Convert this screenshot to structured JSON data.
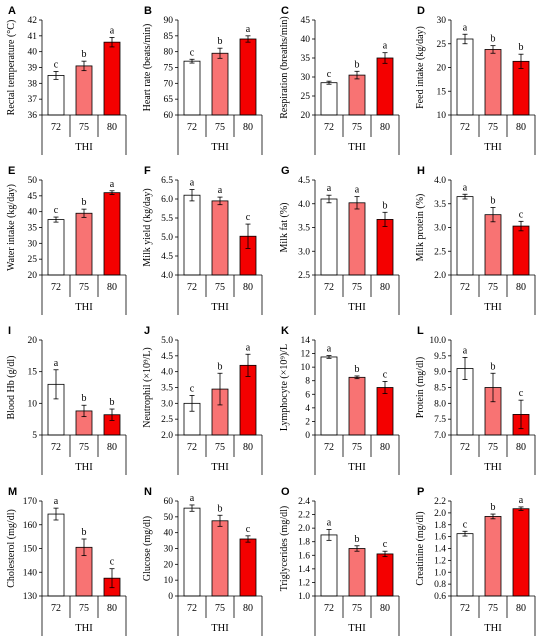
{
  "chart_data": [
    {
      "panel": "A",
      "type": "bar",
      "ylabel": "Rectal temperature (°C)",
      "xlabel": "THI",
      "categories": [
        "72",
        "75",
        "80"
      ],
      "values": [
        38.5,
        39.1,
        40.6
      ],
      "errors": [
        0.25,
        0.3,
        0.3
      ],
      "sig": [
        "c",
        "b",
        "a"
      ],
      "ylim": [
        36,
        42
      ],
      "ticks": [
        "36",
        "37",
        "38",
        "39",
        "40",
        "41",
        "42"
      ]
    },
    {
      "panel": "B",
      "type": "bar",
      "ylabel": "Heart rate (beats/min)",
      "xlabel": "THI",
      "categories": [
        "72",
        "75",
        "80"
      ],
      "values": [
        77,
        79.5,
        84
      ],
      "errors": [
        0.6,
        1.6,
        1.0
      ],
      "sig": [
        "c",
        "b",
        "a"
      ],
      "ylim": [
        60,
        90
      ],
      "ticks": [
        "60",
        "65",
        "70",
        "75",
        "80",
        "85",
        "90"
      ]
    },
    {
      "panel": "C",
      "type": "bar",
      "ylabel": "Respiration (breaths/min)",
      "xlabel": "THI",
      "categories": [
        "72",
        "75",
        "80"
      ],
      "values": [
        28.5,
        30.5,
        35
      ],
      "errors": [
        0.4,
        1.0,
        1.4
      ],
      "sig": [
        "c",
        "b",
        "a"
      ],
      "ylim": [
        20,
        45
      ],
      "ticks": [
        "20",
        "25",
        "30",
        "35",
        "40",
        "45"
      ]
    },
    {
      "panel": "D",
      "type": "bar",
      "ylabel": "Feed intake (kg/day)",
      "xlabel": "THI",
      "categories": [
        "72",
        "75",
        "80"
      ],
      "values": [
        26,
        23.8,
        21.3
      ],
      "errors": [
        1.0,
        0.8,
        1.5
      ],
      "sig": [
        "a",
        "b",
        "b"
      ],
      "ylim": [
        10,
        30
      ],
      "ticks": [
        "10",
        "15",
        "20",
        "25",
        "30"
      ]
    },
    {
      "panel": "E",
      "type": "bar",
      "ylabel": "Water intake (kg/day)",
      "xlabel": "THI",
      "categories": [
        "72",
        "75",
        "80"
      ],
      "values": [
        37.5,
        39.5,
        46
      ],
      "errors": [
        0.8,
        1.3,
        0.6
      ],
      "sig": [
        "c",
        "b",
        "a"
      ],
      "ylim": [
        20,
        50
      ],
      "ticks": [
        "20",
        "25",
        "30",
        "35",
        "40",
        "45",
        "50"
      ]
    },
    {
      "panel": "F",
      "type": "bar",
      "ylabel": "Milk yield (kg/day)",
      "xlabel": "THI",
      "categories": [
        "72",
        "75",
        "80"
      ],
      "values": [
        6.1,
        5.95,
        5.02
      ],
      "errors": [
        0.15,
        0.1,
        0.32
      ],
      "sig": [
        "a",
        "a",
        "c"
      ],
      "ylim": [
        4.0,
        6.5
      ],
      "ticks": [
        "4.0",
        "4.5",
        "5.0",
        "5.5",
        "6.0",
        "6.5"
      ]
    },
    {
      "panel": "G",
      "type": "bar",
      "ylabel": "Milk fat (%)",
      "xlabel": "THI",
      "categories": [
        "72",
        "75",
        "80"
      ],
      "values": [
        4.1,
        4.02,
        3.67
      ],
      "errors": [
        0.08,
        0.13,
        0.15
      ],
      "sig": [
        "a",
        "a",
        "b"
      ],
      "ylim": [
        2.5,
        4.5
      ],
      "ticks": [
        "2.5",
        "3.0",
        "3.5",
        "4.0",
        "4.5"
      ]
    },
    {
      "panel": "H",
      "type": "bar",
      "ylabel": "Milk protein (%)",
      "xlabel": "THI",
      "categories": [
        "72",
        "75",
        "80"
      ],
      "values": [
        3.65,
        3.27,
        3.03
      ],
      "errors": [
        0.05,
        0.15,
        0.1
      ],
      "sig": [
        "a",
        "b",
        "c"
      ],
      "ylim": [
        2.0,
        4.0
      ],
      "ticks": [
        "2.0",
        "2.5",
        "3.0",
        "3.5",
        "4.0"
      ]
    },
    {
      "panel": "I",
      "type": "bar",
      "ylabel": "Blood Hb (g/dl)",
      "xlabel": "THI",
      "categories": [
        "72",
        "75",
        "80"
      ],
      "values": [
        13,
        8.8,
        8.2
      ],
      "errors": [
        2.3,
        0.9,
        0.9
      ],
      "sig": [
        "a",
        "b",
        "b"
      ],
      "ylim": [
        5,
        20
      ],
      "ticks": [
        "5",
        "10",
        "15",
        "20"
      ]
    },
    {
      "panel": "J",
      "type": "bar",
      "ylabel": "Neutrophil (×10⁹/L)",
      "xlabel": "THI",
      "categories": [
        "72",
        "75",
        "80"
      ],
      "values": [
        3.0,
        3.45,
        4.2
      ],
      "errors": [
        0.25,
        0.5,
        0.35
      ],
      "sig": [
        "c",
        "b",
        "a"
      ],
      "ylim": [
        2.0,
        5.0
      ],
      "ticks": [
        "2.0",
        "2.5",
        "3.0",
        "3.5",
        "4.0",
        "4.5",
        "5.0"
      ]
    },
    {
      "panel": "K",
      "type": "bar",
      "ylabel": "Lymphocyte (×10⁹)/L",
      "xlabel": "THI",
      "categories": [
        "72",
        "75",
        "80"
      ],
      "values": [
        11.5,
        8.5,
        7.0
      ],
      "errors": [
        0.2,
        0.2,
        0.9
      ],
      "sig": [
        "a",
        "b",
        "c"
      ],
      "ylim": [
        0,
        14
      ],
      "ticks": [
        "0",
        "2",
        "4",
        "6",
        "8",
        "10",
        "12",
        "14"
      ]
    },
    {
      "panel": "L",
      "type": "bar",
      "ylabel": "Protein (mg/dl)",
      "xlabel": "THI",
      "categories": [
        "72",
        "75",
        "80"
      ],
      "values": [
        9.1,
        8.5,
        7.65
      ],
      "errors": [
        0.35,
        0.45,
        0.45
      ],
      "sig": [
        "a",
        "b",
        "c"
      ],
      "ylim": [
        7.0,
        10.0
      ],
      "ticks": [
        "7.0",
        "7.5",
        "8.0",
        "8.5",
        "9.0",
        "9.5",
        "10.0"
      ]
    },
    {
      "panel": "M",
      "type": "bar",
      "ylabel": "Cholesterol (mg/dl)",
      "xlabel": "THI",
      "categories": [
        "72",
        "75",
        "80"
      ],
      "values": [
        164.5,
        150.5,
        137.5
      ],
      "errors": [
        2.5,
        3.5,
        4.0
      ],
      "sig": [
        "a",
        "b",
        "c"
      ],
      "ylim": [
        130,
        170
      ],
      "ticks": [
        "130",
        "140",
        "150",
        "160",
        "170"
      ]
    },
    {
      "panel": "N",
      "type": "bar",
      "ylabel": "Glucose (mg/dl)",
      "xlabel": "THI",
      "categories": [
        "72",
        "75",
        "80"
      ],
      "values": [
        55.5,
        47.5,
        36
      ],
      "errors": [
        2.0,
        3.5,
        2.0
      ],
      "sig": [
        "a",
        "b",
        "c"
      ],
      "ylim": [
        0,
        60
      ],
      "ticks": [
        "0",
        "10",
        "20",
        "30",
        "40",
        "50",
        "60"
      ]
    },
    {
      "panel": "O",
      "type": "bar",
      "ylabel": "Triglycerides (mg/dl)",
      "xlabel": "THI",
      "categories": [
        "72",
        "75",
        "80"
      ],
      "values": [
        1.9,
        1.7,
        1.62
      ],
      "errors": [
        0.08,
        0.04,
        0.04
      ],
      "sig": [
        "a",
        "b",
        "c"
      ],
      "ylim": [
        1.0,
        2.4
      ],
      "ticks": [
        "1.0",
        "1.2",
        "1.4",
        "1.6",
        "1.8",
        "2.0",
        "2.2",
        "2.4"
      ]
    },
    {
      "panel": "P",
      "type": "bar",
      "ylabel": "Creatinine (mg/dl)",
      "xlabel": "THI",
      "categories": [
        "72",
        "75",
        "80"
      ],
      "values": [
        1.65,
        1.94,
        2.07
      ],
      "errors": [
        0.04,
        0.04,
        0.03
      ],
      "sig": [
        "c",
        "b",
        "a"
      ],
      "ylim": [
        0.6,
        2.2
      ],
      "ticks": [
        "0.6",
        "0.8",
        "1.0",
        "1.2",
        "1.4",
        "1.6",
        "1.8",
        "2.0",
        "2.2"
      ]
    }
  ],
  "colors": {
    "bar_72": "#ffffff",
    "bar_75": "#f87373",
    "bar_80": "#f40000",
    "stroke": "#000000"
  }
}
